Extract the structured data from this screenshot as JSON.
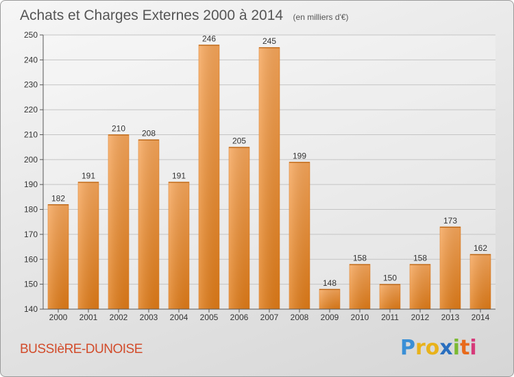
{
  "chart_data": {
    "type": "bar",
    "title": "Achats et Charges Externes 2000 à 2014",
    "subtitle": "(en milliers d'€)",
    "categories": [
      "2000",
      "2001",
      "2002",
      "2003",
      "2004",
      "2005",
      "2006",
      "2007",
      "2008",
      "2009",
      "2010",
      "2011",
      "2012",
      "2013",
      "2014"
    ],
    "values": [
      182,
      191,
      210,
      208,
      191,
      246,
      205,
      245,
      199,
      148,
      158,
      150,
      158,
      173,
      162
    ],
    "ylim": [
      140,
      250
    ],
    "yticks": [
      140,
      150,
      160,
      170,
      180,
      190,
      200,
      210,
      220,
      230,
      240,
      250
    ],
    "grid": true,
    "bar_color": "#f0902e"
  },
  "footer": {
    "commune": "BUSSIèRE-DUNOISE",
    "brand_letters": [
      "P",
      "r",
      "o",
      "x",
      "i",
      "t",
      "i"
    ],
    "brand_colors": [
      "#3a8fd6",
      "#e8b21b",
      "#e8b21b",
      "#2a6fbf",
      "#7bb932",
      "#e86a1b",
      "#d63a7a"
    ]
  }
}
